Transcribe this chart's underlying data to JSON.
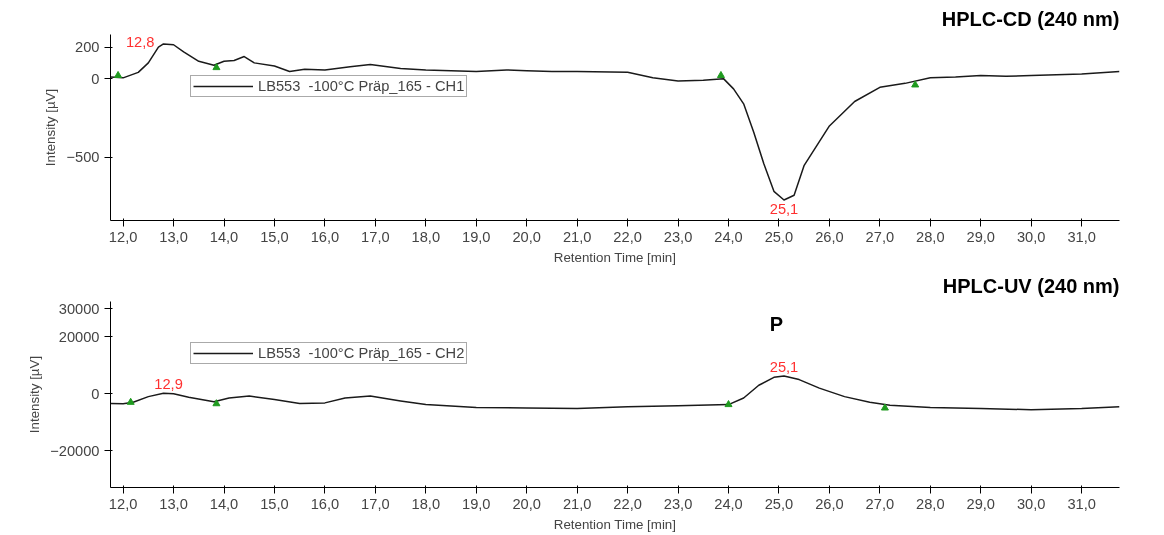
{
  "chart_data": [
    {
      "type": "line",
      "title": "HPLC-CD (240 nm)",
      "xlabel": "Retention Time [min]",
      "ylabel": "Intensity [µV]",
      "legend": "top left",
      "grid": false,
      "xlim": [
        11.75,
        31.75
      ],
      "ylim": [
        -900,
        280
      ],
      "xticks": [
        {
          "value": 12,
          "label": "12,0"
        },
        {
          "value": 13,
          "label": "13,0"
        },
        {
          "value": 14,
          "label": "14,0"
        },
        {
          "value": 15,
          "label": "15,0"
        },
        {
          "value": 16,
          "label": "16,0"
        },
        {
          "value": 17,
          "label": "17,0"
        },
        {
          "value": 18,
          "label": "18,0"
        },
        {
          "value": 19,
          "label": "19,0"
        },
        {
          "value": 20,
          "label": "20,0"
        },
        {
          "value": 21,
          "label": "21,0"
        },
        {
          "value": 22,
          "label": "22,0"
        },
        {
          "value": 23,
          "label": "23,0"
        },
        {
          "value": 24,
          "label": "24,0"
        },
        {
          "value": 25,
          "label": "25,0"
        },
        {
          "value": 26,
          "label": "26,0"
        },
        {
          "value": 27,
          "label": "27,0"
        },
        {
          "value": 28,
          "label": "28,0"
        },
        {
          "value": 29,
          "label": "29,0"
        },
        {
          "value": 30,
          "label": "30,0"
        },
        {
          "value": 31,
          "label": "31,0"
        }
      ],
      "yticks": [
        -500,
        0,
        200
      ],
      "series": [
        {
          "name": "LB553  -100°C Präp_165 - CH1",
          "color": "#1a1a1a",
          "x": [
            11.75,
            12.0,
            12.3,
            12.5,
            12.7,
            12.8,
            13.0,
            13.2,
            13.5,
            13.8,
            14.0,
            14.2,
            14.4,
            14.6,
            15.0,
            15.3,
            15.6,
            16.0,
            16.5,
            16.9,
            17.5,
            18.0,
            18.5,
            19.0,
            19.6,
            20.0,
            20.5,
            21.0,
            22.0,
            22.5,
            23.0,
            23.5,
            23.9,
            24.1,
            24.3,
            24.5,
            24.7,
            24.9,
            25.1,
            25.3,
            25.5,
            26.0,
            26.5,
            27.0,
            27.5,
            28.0,
            28.5,
            29.0,
            29.5,
            30.0,
            30.5,
            31.0,
            31.75
          ],
          "values": [
            10,
            5,
            40,
            100,
            200,
            220,
            215,
            170,
            110,
            85,
            110,
            115,
            140,
            100,
            80,
            45,
            60,
            55,
            75,
            90,
            65,
            55,
            50,
            45,
            55,
            50,
            45,
            45,
            40,
            5,
            -15,
            -10,
            0,
            -65,
            -160,
            -340,
            -540,
            -715,
            -770,
            -740,
            -550,
            -300,
            -145,
            -55,
            -30,
            5,
            10,
            20,
            15,
            20,
            25,
            30,
            45
          ]
        },
        {
          "type": "scatter",
          "marker": "triangle",
          "color": "#1f9a1f",
          "x": [
            11.9,
            13.85,
            23.85,
            27.7
          ],
          "values": [
            20,
            70,
            20,
            -40
          ]
        }
      ],
      "annotations": [
        {
          "text": "12,8",
          "x": 12.8,
          "y": 220
        },
        {
          "text": "25,1",
          "x": 25.1,
          "y": -770
        }
      ]
    },
    {
      "type": "line",
      "title": "HPLC-UV (240 nm)",
      "xlabel": "Retention Time [min]",
      "ylabel": "Intensity [µV]",
      "legend": "top left",
      "grid": false,
      "xlim": [
        11.75,
        31.75
      ],
      "ylim": [
        -33000,
        32500
      ],
      "xticks": [
        {
          "value": 12,
          "label": "12,0"
        },
        {
          "value": 13,
          "label": "13,0"
        },
        {
          "value": 14,
          "label": "14,0"
        },
        {
          "value": 15,
          "label": "15,0"
        },
        {
          "value": 16,
          "label": "16,0"
        },
        {
          "value": 17,
          "label": "17,0"
        },
        {
          "value": 18,
          "label": "18,0"
        },
        {
          "value": 19,
          "label": "19,0"
        },
        {
          "value": 20,
          "label": "20,0"
        },
        {
          "value": 21,
          "label": "21,0"
        },
        {
          "value": 22,
          "label": "22,0"
        },
        {
          "value": 23,
          "label": "23,0"
        },
        {
          "value": 24,
          "label": "24,0"
        },
        {
          "value": 25,
          "label": "25,0"
        },
        {
          "value": 26,
          "label": "26,0"
        },
        {
          "value": 27,
          "label": "27,0"
        },
        {
          "value": 28,
          "label": "28,0"
        },
        {
          "value": 29,
          "label": "29,0"
        },
        {
          "value": 30,
          "label": "30,0"
        },
        {
          "value": 31,
          "label": "31,0"
        }
      ],
      "yticks": [
        -20000,
        0,
        20000,
        30000
      ],
      "series": [
        {
          "name": "LB553  -100°C Präp_165 - CH2",
          "color": "#1a1a1a",
          "x": [
            11.75,
            12.0,
            12.2,
            12.5,
            12.8,
            13.0,
            13.3,
            13.8,
            14.1,
            14.5,
            15.0,
            15.5,
            16.0,
            16.4,
            16.9,
            17.5,
            18.0,
            19.0,
            20.0,
            21.0,
            22.0,
            23.0,
            24.0,
            24.3,
            24.6,
            24.9,
            25.1,
            25.4,
            25.8,
            26.3,
            26.8,
            27.2,
            28.0,
            29.0,
            30.0,
            31.0,
            31.75
          ],
          "values": [
            -3400,
            -3500,
            -3000,
            -1000,
            200,
            0,
            -1200,
            -2800,
            -1500,
            -800,
            -2000,
            -3400,
            -3200,
            -1500,
            -800,
            -2500,
            -3800,
            -4800,
            -5000,
            -5200,
            -4600,
            -4200,
            -3800,
            -1500,
            3000,
            5800,
            6300,
            5000,
            2000,
            -1000,
            -3000,
            -4000,
            -4800,
            -5200,
            -5600,
            -5200,
            -4600
          ]
        },
        {
          "type": "scatter",
          "marker": "triangle",
          "color": "#1f9a1f",
          "x": [
            12.15,
            13.85,
            24.0,
            27.1
          ],
          "values": [
            -3000,
            -3500,
            -3800,
            -5000
          ]
        }
      ],
      "annotations": [
        {
          "text": "12,9",
          "x": 12.9,
          "y": 200
        },
        {
          "text": "25,1",
          "x": 25.1,
          "y": 6300
        },
        "P"
      ]
    }
  ]
}
